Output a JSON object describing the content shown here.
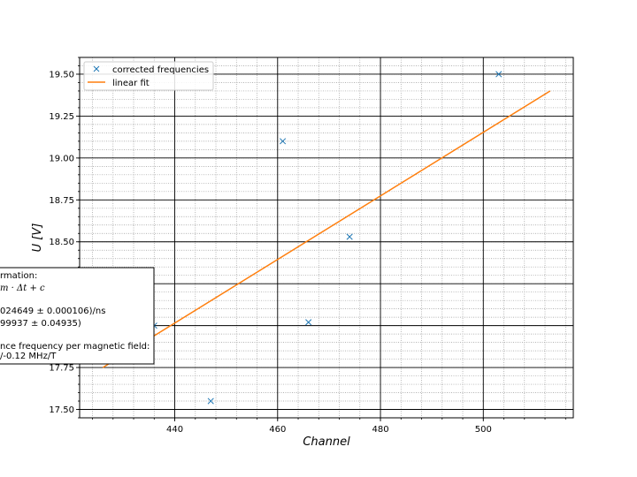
{
  "chart_data": {
    "type": "scatter",
    "xlabel": "Channel",
    "ylabel": "U [V]",
    "xlim": [
      421.5,
      517.5
    ],
    "ylim": [
      17.45,
      19.6
    ],
    "xticks": [
      "440",
      "460",
      "480",
      "500"
    ],
    "yticks": [
      "17.50",
      "17.75",
      "18.00",
      "18.25",
      "18.50",
      "18.75",
      "19.00",
      "19.25",
      "19.50"
    ],
    "grid": true,
    "legend_position": "top-left",
    "series": [
      {
        "name": "corrected frequencies",
        "kind": "scatter",
        "marker": "x",
        "color": "#1f77b4",
        "points": [
          {
            "x": 436,
            "y": 18.0
          },
          {
            "x": 447,
            "y": 17.55
          },
          {
            "x": 461,
            "y": 19.1
          },
          {
            "x": 466,
            "y": 18.02
          },
          {
            "x": 474,
            "y": 18.53
          },
          {
            "x": 503,
            "y": 19.5
          }
        ]
      },
      {
        "name": "linear fit",
        "kind": "line",
        "color": "#ff7f0e",
        "points": [
          {
            "x": 426,
            "y": 17.75
          },
          {
            "x": 513,
            "y": 19.4
          }
        ]
      }
    ],
    "annotation": {
      "lines": [
        "rmation:",
        "m · Δt + c",
        "",
        "024649 ± 0.000106)/ns",
        "99937 ± 0.04935)",
        "",
        "nce frequency per magnetic field:",
        "/-0.12 MHz/T"
      ]
    }
  }
}
